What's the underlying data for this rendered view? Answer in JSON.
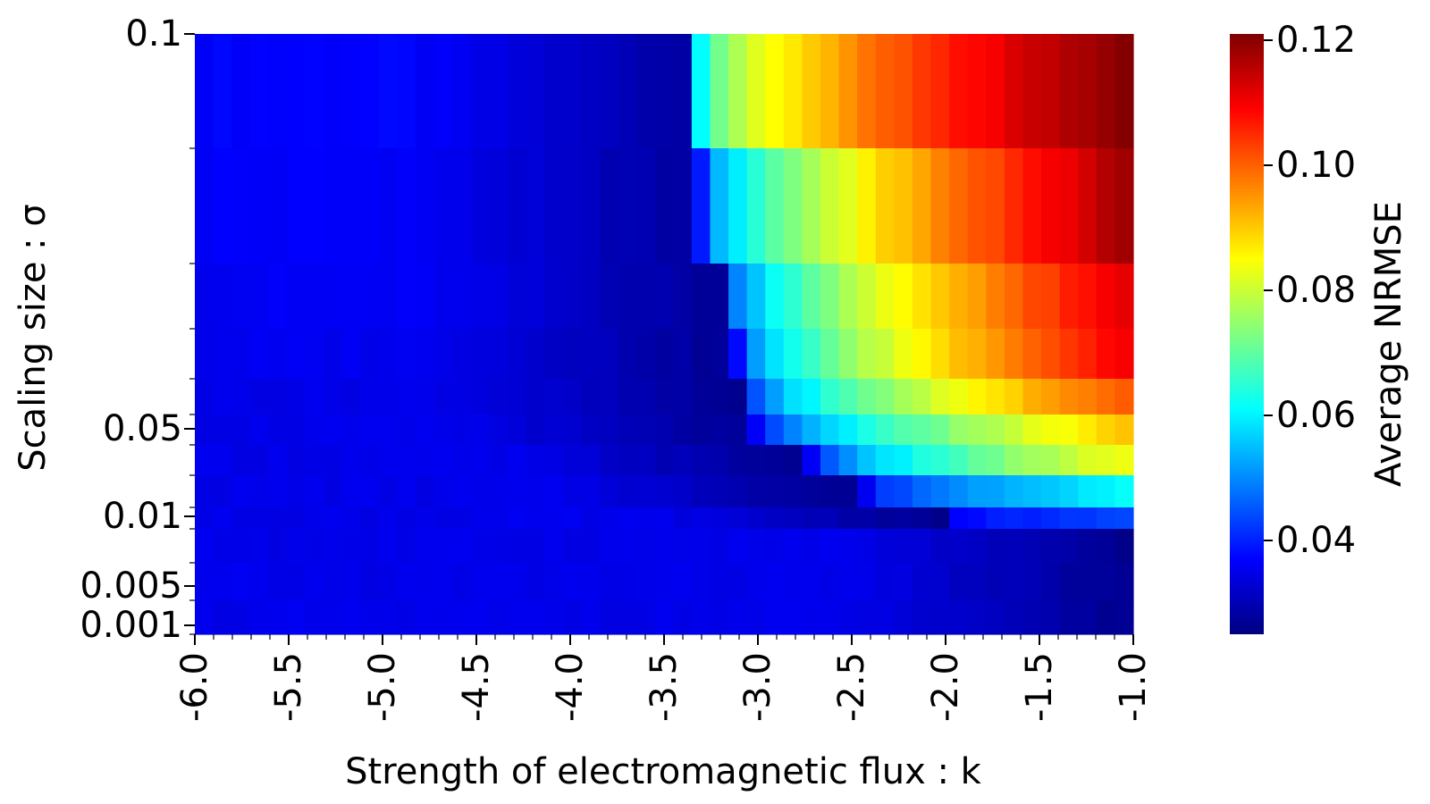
{
  "chart_data": {
    "type": "heatmap",
    "colormap": "jet",
    "xlabel": "Strength of electromagnetic flux : k",
    "ylabel": "Scaling size : σ",
    "colorbar_label": "Average NRMSE",
    "x_range": [
      -6.0,
      -1.0
    ],
    "x_ticks": [
      -6.0,
      -5.5,
      -5.0,
      -4.5,
      -4.0,
      -3.5,
      -3.0,
      -2.5,
      -2.0,
      -1.5,
      -1.0
    ],
    "x_tick_labels": [
      "-6.0",
      "-5.5",
      "-5.0",
      "-4.5",
      "-4.0",
      "-3.5",
      "-3.0",
      "-2.5",
      "-2.0",
      "-1.5",
      "-1.0"
    ],
    "x_values": [
      -6.0,
      -5.9,
      -5.8,
      -5.7,
      -5.6,
      -5.5,
      -5.4,
      -5.3,
      -5.2,
      -5.1,
      -5.0,
      -4.9,
      -4.8,
      -4.7,
      -4.6,
      -4.5,
      -4.4,
      -4.3,
      -4.2,
      -4.1,
      -4.0,
      -3.9,
      -3.8,
      -3.7,
      -3.6,
      -3.5,
      -3.4,
      -3.3,
      -3.2,
      -3.1,
      -3.0,
      -2.9,
      -2.8,
      -2.7,
      -2.6,
      -2.5,
      -2.4,
      -2.3,
      -2.2,
      -2.1,
      -2.0,
      -1.9,
      -1.8,
      -1.7,
      -1.6,
      -1.5,
      -1.4,
      -1.3,
      -1.2,
      -1.1,
      -1.0
    ],
    "y_values": [
      0.1,
      0.09,
      0.08,
      0.07,
      0.06,
      0.05,
      0.04,
      0.03,
      0.02,
      0.01,
      0.005,
      0.001
    ],
    "y_tick_labels": [
      {
        "value": 0.1,
        "label": "0.1"
      },
      {
        "value": 0.05,
        "label": "0.05"
      },
      {
        "value": 0.01,
        "label": "0.01"
      },
      {
        "value": 0.005,
        "label": "0.005"
      },
      {
        "value": 0.001,
        "label": "0.001"
      }
    ],
    "zlim": [
      0.025,
      0.121
    ],
    "colorbar_ticks": [
      0.04,
      0.06,
      0.08,
      0.1,
      0.12
    ],
    "colorbar_tick_labels": [
      "0.04",
      "0.06",
      "0.08",
      "0.10",
      "0.12"
    ],
    "transition_k": [
      -3.3,
      -3.3,
      -3.15,
      -3.1,
      -3.05,
      -2.95,
      -2.7,
      -2.4,
      -1.9,
      -0.9,
      -0.9,
      -0.9
    ],
    "rows": [
      {
        "sigma": 0.1,
        "base": 0.037,
        "onset": 0.062,
        "max": 0.121
      },
      {
        "sigma": 0.09,
        "base": 0.0365,
        "onset": 0.04,
        "max": 0.117
      },
      {
        "sigma": 0.08,
        "base": 0.036,
        "onset": 0.04,
        "max": 0.111
      },
      {
        "sigma": 0.07,
        "base": 0.0355,
        "onset": 0.038,
        "max": 0.11
      },
      {
        "sigma": 0.06,
        "base": 0.035,
        "onset": 0.037,
        "max": 0.101
      },
      {
        "sigma": 0.05,
        "base": 0.035,
        "onset": 0.036,
        "max": 0.09
      },
      {
        "sigma": 0.04,
        "base": 0.035,
        "onset": 0.036,
        "max": 0.084
      },
      {
        "sigma": 0.03,
        "base": 0.035,
        "onset": 0.036,
        "max": 0.061
      },
      {
        "sigma": 0.02,
        "base": 0.035,
        "onset": 0.036,
        "max": 0.043
      },
      {
        "sigma": 0.01,
        "base": 0.035,
        "onset": 0.035,
        "max": 0.038
      },
      {
        "sigma": 0.005,
        "base": 0.035,
        "onset": 0.034,
        "max": 0.036
      },
      {
        "sigma": 0.001,
        "base": 0.035,
        "onset": 0.033,
        "max": 0.034
      }
    ]
  }
}
